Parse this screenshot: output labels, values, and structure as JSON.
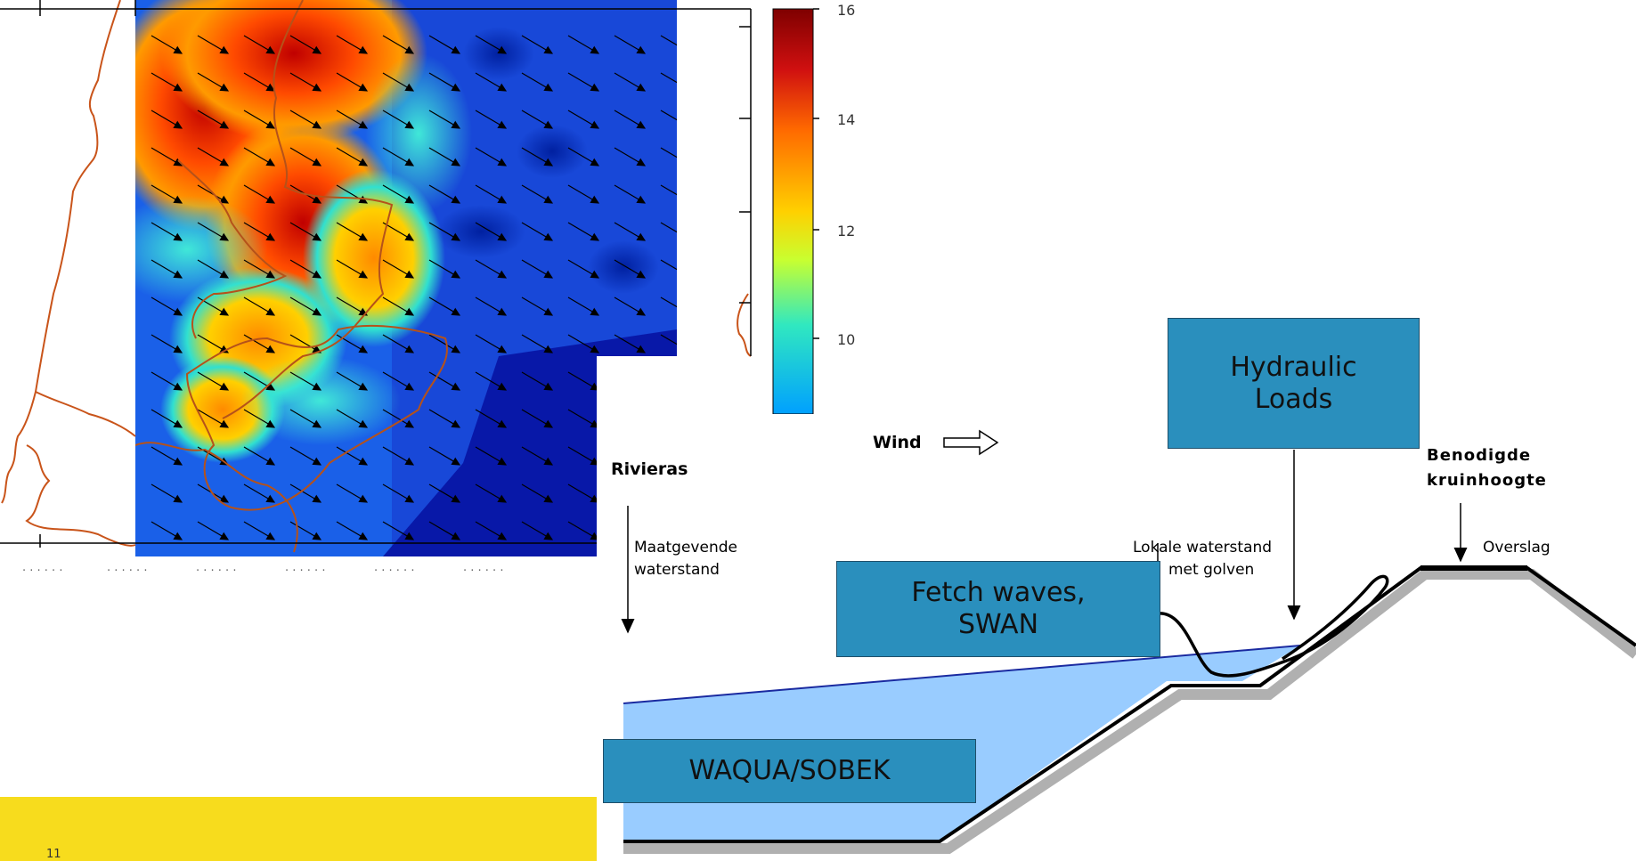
{
  "map": {
    "colorbar_ticks": [
      "16",
      "14",
      "12",
      "10"
    ],
    "colorbar_colors": [
      "#7f0000",
      "#d01010",
      "#ff6a00",
      "#ffd000",
      "#c8ff30",
      "#30e8c0",
      "#00a8ff",
      "#0050d8"
    ]
  },
  "diagram": {
    "wind_label": "Wind",
    "rivieras_label": "Rivieras",
    "maatgevende_label": [
      "Maatgevende",
      "waterstand"
    ],
    "lokale_label": [
      "Lokale waterstand",
      "met golven"
    ],
    "benodigde_label": [
      "Benodigde",
      "kruinhoogte"
    ],
    "overslag_label": "Overslag",
    "water_color": "#99ccff",
    "dike_fill": "#ffffff",
    "dike_shadow": "#b0b0b0"
  },
  "boxes": {
    "hydraulic": [
      "Hydraulic",
      "Loads"
    ],
    "fetch": [
      "Fetch waves,",
      "SWAN"
    ],
    "waqua": "WAQUA/SOBEK",
    "box_color": "#2a8fbd"
  },
  "footer": {
    "bar_color": "#f7dc1d",
    "page_number": "11"
  }
}
